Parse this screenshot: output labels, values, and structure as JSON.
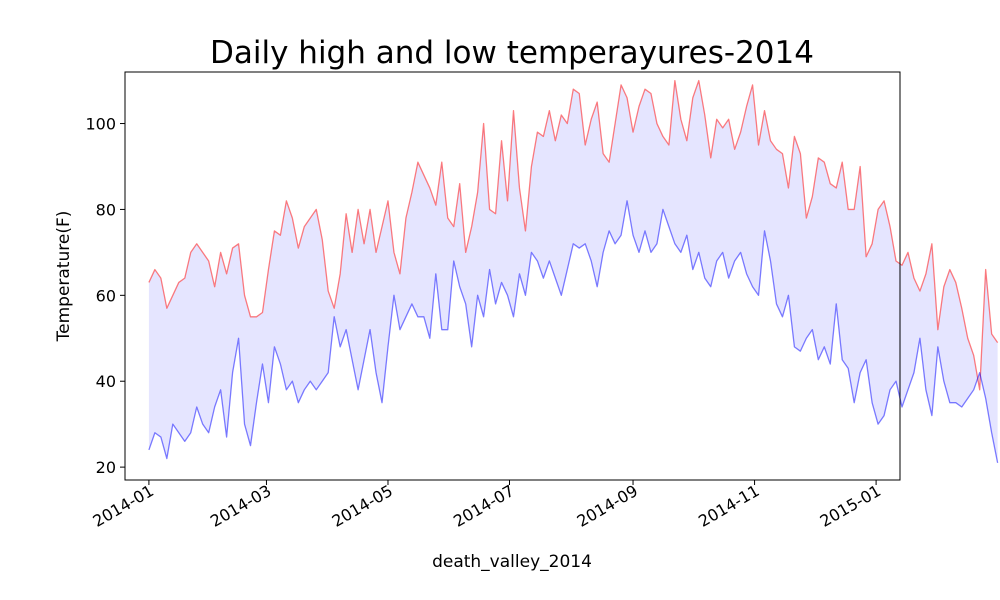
{
  "chart_data": {
    "type": "line",
    "title": "Daily high and low temperayures-2014",
    "xlabel": "death_valley_2014",
    "ylabel": "Temperature(F)",
    "xlim": [
      "2013-12-20",
      "2015-01-13"
    ],
    "ylim": [
      17,
      112
    ],
    "grid": false,
    "legend": "none",
    "fill_between": {
      "color": "#0000ff",
      "alpha": 0.1
    },
    "x_ticks": [
      "2014-01",
      "2014-03",
      "2014-05",
      "2014-07",
      "2014-09",
      "2014-11",
      "2015-01"
    ],
    "x_tick_dates": [
      "2014-01-01",
      "2014-03-01",
      "2014-05-01",
      "2014-07-01",
      "2014-09-01",
      "2014-11-01",
      "2015-01-01"
    ],
    "y_ticks": [
      20,
      40,
      60,
      80,
      100
    ],
    "x_start": "2014-01-01",
    "x_step_days": 3,
    "series": [
      {
        "color": "#ff0000",
        "alpha": 0.5,
        "values": [
          63,
          66,
          64,
          57,
          60,
          63,
          64,
          70,
          72,
          70,
          68,
          62,
          70,
          65,
          71,
          72,
          60,
          55,
          55,
          56,
          66,
          75,
          74,
          82,
          78,
          71,
          76,
          78,
          80,
          73,
          61,
          57,
          65,
          79,
          70,
          80,
          72,
          80,
          70,
          76,
          82,
          70,
          65,
          78,
          84,
          91,
          88,
          85,
          81,
          91,
          78,
          76,
          86,
          70,
          76,
          84,
          100,
          80,
          79,
          96,
          82,
          103,
          85,
          75,
          90,
          98,
          97,
          103,
          96,
          102,
          100,
          108,
          107,
          95,
          101,
          105,
          93,
          91,
          100,
          109,
          106,
          98,
          104,
          108,
          107,
          100,
          97,
          95,
          110,
          101,
          96,
          106,
          110,
          102,
          92,
          101,
          99,
          101,
          94,
          98,
          104,
          109,
          95,
          103,
          96,
          94,
          93,
          85,
          97,
          93,
          78,
          83,
          92,
          91,
          86,
          85,
          91,
          80,
          80,
          90,
          69,
          72,
          80,
          82,
          76,
          68,
          67,
          70,
          64,
          61,
          65,
          72,
          52,
          62,
          66,
          63,
          57,
          50,
          46,
          38,
          66,
          51,
          49
        ]
      },
      {
        "color": "#0000ff",
        "alpha": 0.5,
        "values": [
          24,
          28,
          27,
          22,
          30,
          28,
          26,
          28,
          34,
          30,
          28,
          34,
          38,
          27,
          42,
          50,
          30,
          25,
          35,
          44,
          35,
          48,
          44,
          38,
          40,
          35,
          38,
          40,
          38,
          40,
          42,
          55,
          48,
          52,
          45,
          38,
          45,
          52,
          42,
          35,
          48,
          60,
          52,
          55,
          58,
          55,
          55,
          50,
          65,
          52,
          52,
          68,
          62,
          58,
          48,
          60,
          55,
          66,
          58,
          63,
          60,
          55,
          65,
          60,
          70,
          68,
          64,
          68,
          64,
          60,
          66,
          72,
          71,
          72,
          68,
          62,
          70,
          75,
          72,
          74,
          82,
          74,
          70,
          75,
          70,
          72,
          80,
          76,
          72,
          70,
          74,
          66,
          70,
          64,
          62,
          68,
          70,
          64,
          68,
          70,
          65,
          62,
          60,
          75,
          68,
          58,
          55,
          60,
          48,
          47,
          50,
          52,
          45,
          48,
          44,
          58,
          45,
          43,
          35,
          42,
          45,
          35,
          30,
          32,
          38,
          40,
          34,
          38,
          42,
          50,
          38,
          32,
          48,
          40,
          35,
          35,
          34,
          36,
          38,
          42,
          36,
          28,
          21
        ]
      }
    ]
  }
}
